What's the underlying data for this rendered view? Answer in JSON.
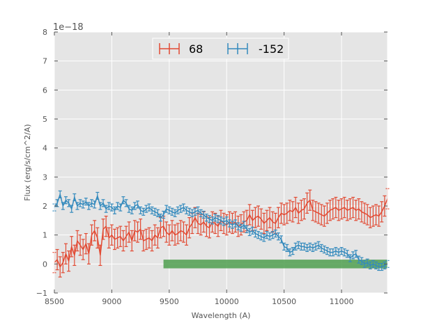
{
  "chart_data": {
    "type": "line",
    "title": "",
    "xlabel": "Wavelength (A)",
    "ylabel": "Flux (erg/s/cm^2/A)",
    "y_offset_label": "1e−18",
    "xlim": [
      8500,
      11400
    ],
    "ylim": [
      -1,
      8
    ],
    "x_ticks": [
      8500,
      9000,
      9500,
      10000,
      10500,
      11000
    ],
    "y_ticks": [
      -1,
      0,
      1,
      2,
      3,
      4,
      5,
      6,
      7,
      8
    ],
    "grid": true,
    "legend_position": "top-center",
    "plot_background": "#e5e5e5",
    "series": [
      {
        "name": "68",
        "color": "#e24a33",
        "errorbars": true,
        "x": [
          8500,
          8525,
          8550,
          8575,
          8600,
          8625,
          8650,
          8675,
          8700,
          8725,
          8750,
          8775,
          8800,
          8825,
          8850,
          8875,
          8900,
          8925,
          8950,
          8975,
          9000,
          9025,
          9050,
          9075,
          9100,
          9125,
          9150,
          9175,
          9200,
          9225,
          9250,
          9275,
          9300,
          9325,
          9350,
          9375,
          9400,
          9425,
          9450,
          9475,
          9500,
          9525,
          9550,
          9575,
          9600,
          9625,
          9650,
          9675,
          9700,
          9725,
          9750,
          9775,
          9800,
          9825,
          9850,
          9875,
          9900,
          9925,
          9950,
          9975,
          10000,
          10025,
          10050,
          10075,
          10100,
          10125,
          10150,
          10175,
          10200,
          10225,
          10250,
          10275,
          10300,
          10325,
          10350,
          10375,
          10400,
          10425,
          10450,
          10475,
          10500,
          10525,
          10550,
          10575,
          10600,
          10625,
          10650,
          10675,
          10700,
          10725,
          10750,
          10775,
          10800,
          10825,
          10850,
          10875,
          10900,
          10925,
          10950,
          10975,
          11000,
          11025,
          11050,
          11075,
          11100,
          11125,
          11150,
          11175,
          11200,
          11225,
          11250,
          11275,
          11300,
          11325,
          11350,
          11375,
          11400
        ],
        "y": [
          0.05,
          0.15,
          -0.1,
          0.05,
          0.35,
          0.1,
          0.6,
          0.3,
          0.8,
          0.65,
          0.5,
          0.7,
          0.35,
          1.0,
          1.15,
          0.9,
          0.3,
          1.2,
          1.3,
          0.9,
          1.0,
          0.85,
          0.9,
          0.95,
          0.8,
          0.95,
          1.1,
          0.8,
          1.15,
          1.1,
          1.2,
          0.8,
          0.85,
          0.9,
          0.8,
          1.0,
          0.9,
          1.25,
          1.3,
          1.1,
          1.0,
          1.15,
          1.0,
          1.05,
          1.15,
          1.1,
          1.0,
          1.25,
          1.4,
          1.6,
          1.4,
          1.35,
          1.45,
          1.3,
          1.25,
          1.45,
          1.4,
          1.3,
          1.5,
          1.4,
          1.35,
          1.45,
          1.4,
          1.45,
          1.3,
          1.35,
          1.45,
          1.5,
          1.7,
          1.5,
          1.6,
          1.65,
          1.55,
          1.4,
          1.5,
          1.6,
          1.45,
          1.4,
          1.6,
          1.75,
          1.7,
          1.75,
          1.85,
          1.8,
          1.95,
          1.75,
          1.85,
          1.9,
          2.1,
          2.2,
          1.85,
          1.8,
          1.75,
          1.7,
          1.65,
          1.75,
          1.85,
          1.9,
          1.95,
          1.85,
          1.9,
          1.95,
          1.85,
          1.9,
          1.95,
          1.85,
          1.9,
          1.8,
          1.75,
          1.7,
          1.6,
          1.65,
          1.7,
          1.65,
          1.8,
          2.0,
          2.25
        ],
        "err": 0.35
      },
      {
        "name": "-152",
        "color": "#348abd",
        "errorbars": true,
        "x": [
          8500,
          8525,
          8550,
          8575,
          8600,
          8625,
          8650,
          8675,
          8700,
          8725,
          8750,
          8775,
          8800,
          8825,
          8850,
          8875,
          8900,
          8925,
          8950,
          8975,
          9000,
          9025,
          9050,
          9075,
          9100,
          9125,
          9150,
          9175,
          9200,
          9225,
          9250,
          9275,
          9300,
          9325,
          9350,
          9375,
          9400,
          9425,
          9450,
          9475,
          9500,
          9525,
          9550,
          9575,
          9600,
          9625,
          9650,
          9675,
          9700,
          9725,
          9750,
          9775,
          9800,
          9825,
          9850,
          9875,
          9900,
          9925,
          9950,
          9975,
          10000,
          10025,
          10050,
          10075,
          10100,
          10125,
          10150,
          10175,
          10200,
          10225,
          10250,
          10275,
          10300,
          10325,
          10350,
          10375,
          10400,
          10425,
          10450,
          10475,
          10500,
          10525,
          10550,
          10575,
          10600,
          10625,
          10650,
          10675,
          10700,
          10725,
          10750,
          10775,
          10800,
          10825,
          10850,
          10875,
          10900,
          10925,
          10950,
          10975,
          11000,
          11025,
          11050,
          11075,
          11100,
          11125,
          11150,
          11175,
          11200,
          11225,
          11250,
          11275,
          11300,
          11325,
          11350,
          11375,
          11400
        ],
        "y": [
          1.95,
          2.1,
          2.4,
          2.0,
          2.2,
          2.1,
          1.9,
          2.3,
          2.0,
          2.1,
          2.05,
          2.15,
          2.0,
          2.1,
          2.05,
          2.35,
          2.0,
          2.1,
          1.9,
          2.0,
          1.95,
          1.85,
          2.0,
          1.95,
          2.2,
          2.1,
          1.9,
          1.85,
          2.0,
          2.05,
          1.85,
          1.8,
          1.9,
          1.95,
          1.85,
          1.8,
          1.75,
          1.6,
          1.7,
          1.9,
          1.85,
          1.8,
          1.75,
          1.85,
          1.9,
          1.95,
          1.85,
          1.8,
          1.75,
          1.8,
          1.85,
          1.75,
          1.7,
          1.6,
          1.55,
          1.5,
          1.6,
          1.55,
          1.5,
          1.45,
          1.5,
          1.4,
          1.35,
          1.4,
          1.3,
          1.25,
          1.35,
          1.2,
          1.1,
          1.15,
          1.05,
          1.0,
          0.95,
          0.9,
          1.0,
          0.95,
          1.0,
          1.05,
          0.95,
          0.85,
          0.6,
          0.55,
          0.4,
          0.45,
          0.6,
          0.65,
          0.6,
          0.6,
          0.55,
          0.6,
          0.55,
          0.6,
          0.65,
          0.55,
          0.5,
          0.45,
          0.4,
          0.4,
          0.45,
          0.4,
          0.45,
          0.4,
          0.35,
          0.2,
          0.3,
          0.35,
          0.15,
          0.1,
          0.0,
          0.05,
          -0.05,
          0.0,
          -0.05,
          -0.1,
          -0.1,
          -0.05,
          0.0
        ],
        "err": 0.12
      }
    ],
    "band": {
      "color": "#4f9f4f",
      "x_start": 9450,
      "x_end": 11400,
      "y_start": -0.15,
      "y_end": 0.15
    }
  }
}
